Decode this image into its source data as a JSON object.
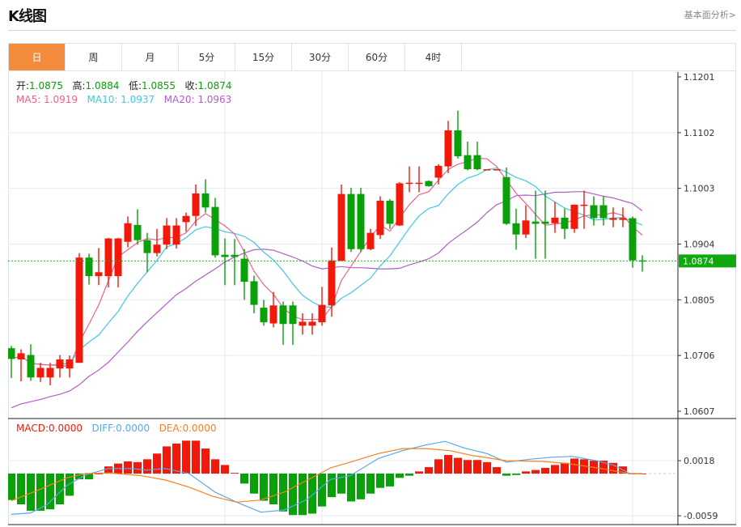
{
  "header": {
    "title": "K线图",
    "link": "基本面分析>"
  },
  "tabs": [
    {
      "label": "日",
      "active": true
    },
    {
      "label": "周"
    },
    {
      "label": "月"
    },
    {
      "label": "5分"
    },
    {
      "label": "15分"
    },
    {
      "label": "30分"
    },
    {
      "label": "60分"
    },
    {
      "label": "4时"
    }
  ],
  "info": {
    "open_label": "开:",
    "open": "1.0875",
    "high_label": "高:",
    "high": "1.0884",
    "low_label": "低:",
    "low": "1.0855",
    "close_label": "收:",
    "close": "1.0874",
    "ma5": "MA5: 1.0919",
    "ma10": "MA10: 1.0937",
    "ma20": "MA20: 1.0963"
  },
  "macd_info": {
    "macd": "MACD:0.0000",
    "diff": "DIFF:0.0000",
    "dea": "DEA:0.0000"
  },
  "colors": {
    "up": "#f2190a",
    "down": "#0aa00a",
    "ma5": "#f0608a",
    "ma10": "#3ec9df",
    "ma20": "#b45cc6",
    "diff": "#55a9ea",
    "dea": "#f5831f",
    "tab_active": "#f28b3c"
  },
  "chart_data": {
    "type": "candlestick",
    "price_axis": {
      "ticks": [
        "1.1201",
        "1.1102",
        "1.1003",
        "1.0904",
        "1.0805",
        "1.0706",
        "1.0607"
      ],
      "ylim": [
        1.0607,
        1.1201
      ]
    },
    "current_price": "1.0874",
    "ohlc": [
      [
        1.0719,
        1.0723,
        1.0666,
        1.07
      ],
      [
        1.0699,
        1.0717,
        1.066,
        1.071
      ],
      [
        1.0707,
        1.0726,
        1.0661,
        1.0667
      ],
      [
        1.0667,
        1.0693,
        1.0659,
        1.0684
      ],
      [
        1.0667,
        1.0693,
        1.0653,
        1.0684
      ],
      [
        1.0683,
        1.0707,
        1.0667,
        1.0699
      ],
      [
        1.0683,
        1.0706,
        1.0667,
        1.0699
      ],
      [
        1.0693,
        1.0888,
        1.0693,
        1.088
      ],
      [
        1.088,
        1.0887,
        1.0832,
        1.0847
      ],
      [
        1.0847,
        1.0897,
        1.0831,
        1.0854
      ],
      [
        1.0847,
        1.0915,
        1.0827,
        1.0914
      ],
      [
        1.0847,
        1.0915,
        1.0827,
        1.0914
      ],
      [
        1.0908,
        1.0953,
        1.0898,
        1.0941
      ],
      [
        1.0938,
        1.0966,
        1.0903,
        1.0911
      ],
      [
        1.0911,
        1.0924,
        1.0854,
        1.0888
      ],
      [
        1.0888,
        1.0931,
        1.0882,
        1.0903
      ],
      [
        1.0903,
        1.095,
        1.0895,
        1.0937
      ],
      [
        1.0903,
        1.095,
        1.0896,
        1.0937
      ],
      [
        1.0943,
        1.096,
        1.0926,
        1.0954
      ],
      [
        1.0954,
        1.101,
        1.0936,
        1.0994
      ],
      [
        1.0994,
        1.1019,
        1.096,
        1.0969
      ],
      [
        1.097,
        1.0986,
        1.088,
        1.0884
      ],
      [
        1.0885,
        1.0914,
        1.0831,
        1.0881
      ],
      [
        1.0885,
        1.0913,
        1.0831,
        1.0881
      ],
      [
        1.0878,
        1.0895,
        1.0805,
        1.0837
      ],
      [
        1.0838,
        1.0848,
        1.0781,
        1.0796
      ],
      [
        1.0791,
        1.0805,
        1.0759,
        1.0765
      ],
      [
        1.0763,
        1.0819,
        1.0756,
        1.0795
      ],
      [
        1.0795,
        1.0802,
        1.0725,
        1.0762
      ],
      [
        1.0795,
        1.0802,
        1.0725,
        1.0762
      ],
      [
        1.0759,
        1.0781,
        1.0743,
        1.0766
      ],
      [
        1.0759,
        1.0781,
        1.0743,
        1.0766
      ],
      [
        1.0765,
        1.0828,
        1.0759,
        1.0796
      ],
      [
        1.0795,
        1.0898,
        1.0775,
        1.0875
      ],
      [
        1.0874,
        1.101,
        1.0874,
        1.0993
      ],
      [
        1.0993,
        1.1004,
        1.089,
        1.0895
      ],
      [
        1.0993,
        1.1004,
        1.089,
        1.0895
      ],
      [
        1.0895,
        1.0931,
        1.0893,
        1.0924
      ],
      [
        1.092,
        1.0989,
        1.0913,
        1.0981
      ],
      [
        1.0981,
        1.0984,
        1.0931,
        1.094
      ],
      [
        1.0937,
        1.1014,
        1.0936,
        1.1012
      ],
      [
        1.1012,
        1.1042,
        1.0996,
        1.1013
      ],
      [
        1.1012,
        1.1042,
        1.0996,
        1.1013
      ],
      [
        1.1016,
        1.1017,
        1.1006,
        1.1007
      ],
      [
        1.1022,
        1.1046,
        1.101,
        1.1043
      ],
      [
        1.1042,
        1.1123,
        1.103,
        1.1106
      ],
      [
        1.1106,
        1.1141,
        1.1056,
        1.106
      ],
      [
        1.1062,
        1.1086,
        1.1035,
        1.1037
      ],
      [
        1.1062,
        1.1086,
        1.1035,
        1.1037
      ],
      [
        1.1036,
        1.1037,
        1.1036,
        1.1037
      ],
      [
        1.1036,
        1.1037,
        1.1036,
        1.1037
      ],
      [
        1.1023,
        1.104,
        1.0938,
        1.094
      ],
      [
        1.0941,
        1.0967,
        1.0894,
        1.0921
      ],
      [
        1.0921,
        1.0973,
        1.0915,
        1.0946
      ],
      [
        1.0944,
        1.0999,
        1.0878,
        1.094
      ],
      [
        1.0944,
        1.0999,
        1.0878,
        1.094
      ],
      [
        1.0941,
        1.0979,
        1.0924,
        1.0951
      ],
      [
        1.0951,
        1.0967,
        1.0913,
        1.0931
      ],
      [
        1.0931,
        1.0974,
        1.0924,
        1.0974
      ],
      [
        1.0973,
        1.0999,
        1.0931,
        1.0974
      ],
      [
        1.0973,
        1.0989,
        1.0937,
        1.095
      ],
      [
        1.0973,
        1.0989,
        1.0937,
        1.095
      ],
      [
        1.0947,
        1.0969,
        1.0934,
        1.095
      ],
      [
        1.0947,
        1.0969,
        1.0934,
        1.095
      ],
      [
        1.095,
        1.0953,
        1.0862,
        1.0875
      ],
      [
        1.0875,
        1.0884,
        1.0855,
        1.0874
      ]
    ],
    "ma20": [
      1.0613,
      1.062,
      1.0624,
      1.0628,
      1.0633,
      1.0637,
      1.0643,
      1.0654,
      1.0669,
      1.068,
      1.0694,
      1.0712,
      1.073,
      1.0749,
      1.0766,
      1.0782,
      1.0798,
      1.0814,
      1.0825,
      1.0838,
      1.0849,
      1.086,
      1.0872,
      1.0881,
      1.0888,
      1.0894,
      1.0895,
      1.0893,
      1.0887,
      1.0881,
      1.0874,
      1.0865,
      1.086,
      1.0862,
      1.0864,
      1.0862,
      1.0862,
      1.0861,
      1.086,
      1.086,
      1.0861,
      1.0867,
      1.0872,
      1.0878,
      1.0888,
      1.0905,
      1.0918,
      1.093,
      1.0943,
      1.096,
      1.0974,
      1.0981,
      1.099,
      1.0991,
      1.099,
      1.0993,
      1.0996,
      1.0996,
      1.0997,
      1.0997,
      1.0993,
      1.0989,
      1.0986,
      1.0981,
      1.0976,
      1.0963
    ],
    "macd_axis": {
      "ticks": [
        "0.0018",
        "-0.0059"
      ]
    },
    "macd_hist": [
      -0.0037,
      -0.0043,
      -0.0052,
      -0.0052,
      -0.005,
      -0.0043,
      -0.0031,
      -0.0008,
      -0.0008,
      0.0,
      0.001,
      0.0014,
      0.0017,
      0.0016,
      0.002,
      0.0028,
      0.0038,
      0.0042,
      0.0046,
      0.0046,
      0.0035,
      0.002,
      0.0012,
      0.0001,
      -0.0014,
      -0.0028,
      -0.0038,
      -0.0043,
      -0.0053,
      -0.0058,
      -0.0058,
      -0.0056,
      -0.0046,
      -0.0033,
      -0.0028,
      -0.0039,
      -0.0036,
      -0.0028,
      -0.002,
      -0.0018,
      -0.0006,
      -0.0003,
      0.0003,
      0.0009,
      0.002,
      0.0026,
      0.0022,
      0.0019,
      0.0019,
      0.0016,
      0.0009,
      -0.0003,
      -0.0002,
      0.0003,
      0.0005,
      0.0008,
      0.0012,
      0.0015,
      0.0021,
      0.002,
      0.0018,
      0.0018,
      0.0015,
      0.001,
      0.0,
      0.0
    ],
    "diff_points": [
      [
        0,
        -0.0057
      ],
      [
        2,
        -0.0055
      ],
      [
        3.7,
        -0.0043
      ],
      [
        5.7,
        -0.0017
      ],
      [
        7.6,
        -0.0002
      ],
      [
        10,
        0.0007
      ],
      [
        12.5,
        0.0007
      ],
      [
        13.9,
        0.0005
      ],
      [
        15.9,
        0.0007
      ],
      [
        18.3,
        0.0
      ],
      [
        21,
        -0.0026
      ],
      [
        23.2,
        -0.004
      ],
      [
        25.7,
        -0.0054
      ],
      [
        28.1,
        -0.0051
      ],
      [
        30.5,
        -0.0036
      ],
      [
        32.9,
        -0.0008
      ],
      [
        34.9,
        -0.0003
      ],
      [
        37.8,
        0.0021
      ],
      [
        40.3,
        0.0032
      ],
      [
        42.7,
        0.004
      ],
      [
        44.7,
        0.0045
      ],
      [
        46.6,
        0.0036
      ],
      [
        49,
        0.0028
      ],
      [
        51,
        0.0016
      ],
      [
        53.4,
        0.002
      ],
      [
        55.8,
        0.0023
      ],
      [
        57.8,
        0.0024
      ],
      [
        60.3,
        0.0018
      ],
      [
        62.2,
        0.0011
      ],
      [
        63.7,
        0.0
      ],
      [
        65,
        0.0
      ]
    ],
    "dea_points": [
      [
        0,
        -0.0038
      ],
      [
        2.8,
        -0.0023
      ],
      [
        5.7,
        -0.0006
      ],
      [
        7.6,
        0.0
      ],
      [
        10,
        0.0001
      ],
      [
        13.4,
        -0.0003
      ],
      [
        15.9,
        -0.0009
      ],
      [
        18.3,
        -0.0019
      ],
      [
        20.8,
        -0.0032
      ],
      [
        23.2,
        -0.004
      ],
      [
        25.7,
        -0.0037
      ],
      [
        28.1,
        -0.0026
      ],
      [
        30.5,
        -0.0009
      ],
      [
        32.9,
        0.0008
      ],
      [
        34.9,
        0.0016
      ],
      [
        37.8,
        0.0028
      ],
      [
        40.3,
        0.0035
      ],
      [
        42.7,
        0.0035
      ],
      [
        45.2,
        0.0032
      ],
      [
        47.6,
        0.0025
      ],
      [
        51,
        0.0018
      ],
      [
        54.8,
        0.0017
      ],
      [
        57.3,
        0.0014
      ],
      [
        60.3,
        0.0008
      ],
      [
        63.7,
        0.0
      ],
      [
        65,
        0.0
      ]
    ]
  }
}
